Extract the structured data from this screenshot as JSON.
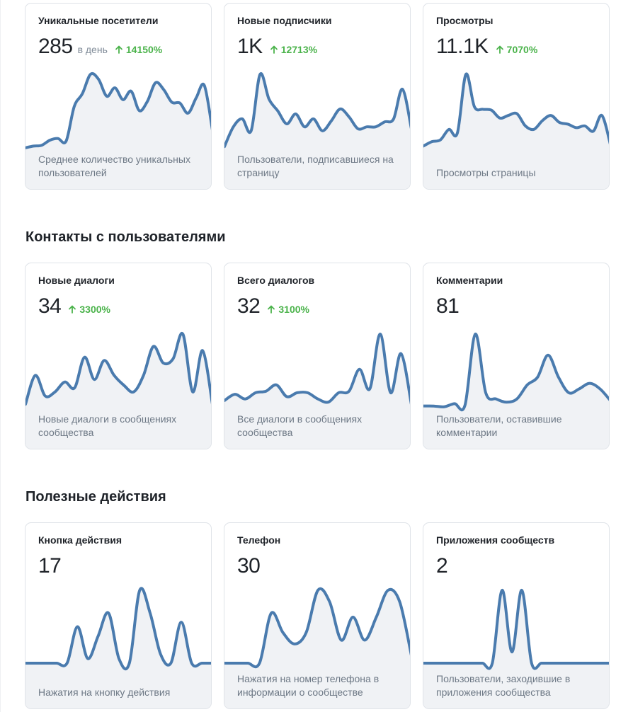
{
  "sections": [
    {
      "title": "",
      "cards": [
        {
          "title": "Уникальные посетители",
          "value": "285",
          "unit": "в день",
          "growth": "14150%",
          "desc": "Среднее количество уникальных пользователей",
          "series": [
            1,
            3,
            4,
            10,
            12,
            9,
            50,
            65,
            88,
            82,
            62,
            72,
            58,
            68,
            45,
            56,
            78,
            70,
            55,
            54,
            42,
            60,
            75,
            22
          ]
        },
        {
          "title": "Новые подписчики",
          "value": "1K",
          "unit": "",
          "growth": "12713%",
          "desc": "Пользователи, подписавшиеся на страницу",
          "series": [
            2,
            22,
            30,
            18,
            75,
            50,
            38,
            25,
            35,
            22,
            30,
            18,
            28,
            40,
            32,
            20,
            22,
            22,
            27,
            30,
            60,
            20
          ]
        },
        {
          "title": "Просмотры",
          "value": "11.1K",
          "unit": "",
          "growth": "7070%",
          "desc": "Просмотры страницы",
          "series": [
            3,
            8,
            10,
            22,
            18,
            85,
            48,
            45,
            44,
            35,
            38,
            40,
            26,
            22,
            32,
            38,
            30,
            28,
            24,
            26,
            20,
            38,
            5
          ]
        }
      ]
    },
    {
      "title": "Контакты с пользователями",
      "cards": [
        {
          "title": "Новые диалоги",
          "value": "34",
          "unit": "",
          "growth": "3300%",
          "desc": "Новые диалоги в сообщениях сообщества",
          "series": [
            5,
            40,
            15,
            20,
            32,
            25,
            62,
            35,
            58,
            40,
            28,
            20,
            40,
            75,
            55,
            60,
            90,
            20,
            70,
            5
          ]
        },
        {
          "title": "Всего диалогов",
          "value": "32",
          "unit": "",
          "growth": "3100%",
          "desc": "Все диалоги в сообщениях сообщества",
          "series": [
            10,
            18,
            12,
            20,
            22,
            30,
            15,
            20,
            20,
            12,
            8,
            20,
            22,
            50,
            25,
            95,
            20,
            70,
            5
          ]
        },
        {
          "title": "Комментарии",
          "value": "81",
          "unit": "",
          "growth": "",
          "desc": "Пользователи, оставившие комментарии",
          "series": [
            3,
            3,
            2,
            6,
            4,
            95,
            20,
            12,
            8,
            12,
            30,
            40,
            68,
            40,
            20,
            25,
            32,
            25,
            10
          ]
        }
      ]
    },
    {
      "title": "Полезные действия",
      "cards": [
        {
          "title": "Кнопка действия",
          "value": "17",
          "unit": "",
          "growth": "",
          "desc": "Нажатия на кнопку действия",
          "series": [
            0,
            0,
            0,
            0,
            0,
            40,
            5,
            30,
            55,
            5,
            0,
            80,
            55,
            10,
            0,
            45,
            0,
            0,
            0
          ]
        },
        {
          "title": "Телефон",
          "value": "30",
          "unit": "",
          "growth": "",
          "desc": "Нажатия на номер телефона в информации о сообществе",
          "series": [
            0,
            0,
            0,
            0,
            65,
            40,
            25,
            40,
            95,
            80,
            30,
            60,
            30,
            60,
            95,
            80,
            10
          ]
        },
        {
          "title": "Приложения сообществ",
          "value": "2",
          "unit": "",
          "growth": "",
          "desc": "Пользователи, заходившие в приложения сообщества",
          "series": [
            0,
            0,
            0,
            0,
            0,
            0,
            0,
            0,
            65,
            10,
            65,
            0,
            0,
            0,
            0,
            0,
            0,
            0,
            0,
            0
          ]
        }
      ]
    }
  ],
  "colors": {
    "line": "#4a7bae",
    "fill": "#f0f2f5",
    "growth": "#4bb34b"
  }
}
